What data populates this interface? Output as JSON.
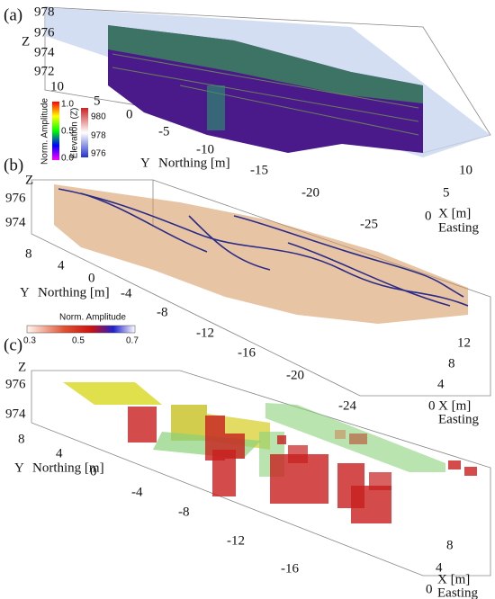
{
  "panels": [
    {
      "label": "(a)",
      "z_label": "Z",
      "z_ticks": [
        "978",
        "976",
        "974",
        "972"
      ],
      "y_label": "Y",
      "y_title": "Northing [m]",
      "y_ticks": [
        "10",
        "5",
        "0",
        "-5",
        "-10",
        "-15",
        "-20",
        "-25"
      ],
      "x_label": "X [m]",
      "x_title": "Easting",
      "x_ticks": [
        "10",
        "5",
        "0"
      ],
      "colorbars": [
        {
          "title": "Norm. Amplitude",
          "ticks": [
            "1.0",
            "0.5",
            "0.0"
          ]
        },
        {
          "title": "Elevation (Z)",
          "ticks": [
            "980",
            "978",
            "976"
          ]
        }
      ]
    },
    {
      "label": "(b)",
      "z_label": "Z",
      "z_ticks": [
        "976",
        "974"
      ],
      "y_label": "Y",
      "y_title": "Northing [m]",
      "y_ticks": [
        "8",
        "4",
        "0",
        "-4",
        "-8",
        "-12",
        "-16",
        "-20",
        "-24"
      ],
      "x_label": "X [m]",
      "x_title": "Easting",
      "x_ticks": [
        "12",
        "8",
        "4",
        "0"
      ],
      "colorbars": [
        {
          "title": "Norm. Amplitude",
          "ticks": [
            "0.3",
            "0.5",
            "0.7"
          ]
        }
      ]
    },
    {
      "label": "(c)",
      "z_label": "Z",
      "z_ticks": [
        "976",
        "974"
      ],
      "y_label": "Y",
      "y_title": "Northing [m]",
      "y_ticks": [
        "8",
        "4",
        "0",
        "-4",
        "-8",
        "-12",
        "-16"
      ],
      "x_label": "X [m]",
      "x_title": "Easting",
      "x_ticks": [
        "8",
        "4",
        "0"
      ]
    }
  ]
}
